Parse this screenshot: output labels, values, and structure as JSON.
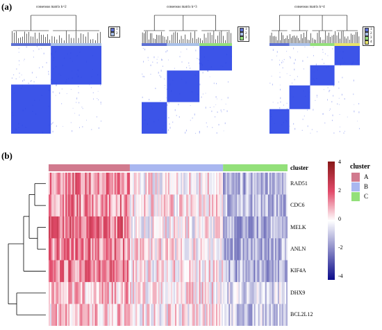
{
  "figure": {
    "panel_a_label": "(a)",
    "panel_b_label": "(b)"
  },
  "consensus": [
    {
      "title": "consensus matrix k=2",
      "k": 2,
      "legend": [
        "1",
        "2"
      ]
    },
    {
      "title": "consensus matrix k=3",
      "k": 3,
      "legend": [
        "1",
        "2",
        "3"
      ]
    },
    {
      "title": "consensus matrix k=4",
      "k": 4,
      "legend": [
        "1",
        "2",
        "3",
        "4"
      ]
    }
  ],
  "heatmap": {
    "annotation_label": "cluster",
    "genes": [
      "RAD51",
      "CDC6",
      "MELK",
      "ANLN",
      "KIF4A",
      "DHX9",
      "BCL2L12"
    ],
    "scale_ticks": [
      "4",
      "2",
      "0",
      "-2",
      "-4"
    ],
    "legend_title": "cluster",
    "clusters": [
      {
        "name": "A",
        "color": "#d17a8e"
      },
      {
        "name": "B",
        "color": "#a9b7f0"
      },
      {
        "name": "C",
        "color": "#93e07a"
      }
    ]
  },
  "colors": {
    "matrix_blue": "#2b45e6",
    "cons_cluster_1": "#5c6fd4",
    "cons_cluster_2": "#a9c0e8",
    "cons_cluster_3": "#93e07a",
    "cons_cluster_4": "#e8e46a",
    "heat_high": "#8b1a1a",
    "heat_mid_high": "#e24a6a",
    "heat_zero": "#ffffff",
    "heat_low": "#0e0e8c"
  },
  "chart_data": {
    "type": "heatmap",
    "title": "",
    "xlabel": "",
    "ylabel": "",
    "row_labels": [
      "RAD51",
      "CDC6",
      "MELK",
      "ANLN",
      "KIF4A",
      "DHX9",
      "BCL2L12"
    ],
    "column_groups": [
      {
        "cluster": "A",
        "fraction": 0.34,
        "mean_expression": [
          1.5,
          1.3,
          1.6,
          1.4,
          1.5,
          0.6,
          0.5
        ]
      },
      {
        "cluster": "B",
        "fraction": 0.39,
        "mean_expression": [
          0.1,
          0.2,
          0.0,
          0.1,
          0.1,
          0.2,
          0.1
        ]
      },
      {
        "cluster": "C",
        "fraction": 0.27,
        "mean_expression": [
          -1.2,
          -1.1,
          -1.3,
          -1.2,
          -1.3,
          -0.6,
          -0.9
        ]
      }
    ],
    "color_range": [
      -4,
      4
    ]
  }
}
